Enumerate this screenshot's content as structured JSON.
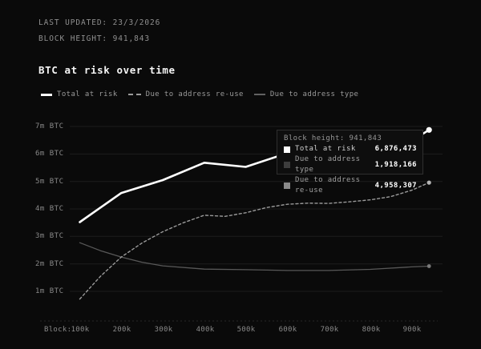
{
  "header": {
    "last_updated": "LAST UPDATED: 23/3/2026",
    "block_height": "BLOCK HEIGHT: 941,843"
  },
  "title": "BTC at risk over time",
  "legend": [
    {
      "label": "Total at risk",
      "marker": "solid-thick",
      "color": "#ffffff"
    },
    {
      "label": "Due to address re-use",
      "marker": "dashed",
      "color": "#9a9a9a"
    },
    {
      "label": "Due to address type",
      "marker": "solid-thin",
      "color": "#616161"
    }
  ],
  "tooltip": {
    "title": "Block height: 941,843",
    "rows": [
      {
        "label": "Total at risk",
        "value": "6,876,473",
        "swatch": "#ffffff"
      },
      {
        "label": "Due to address type",
        "value": "1,918,166",
        "swatch": "#3d3d3d"
      },
      {
        "label": "Due to address re-use",
        "value": "4,958,307",
        "swatch": "#8a8a8a"
      }
    ]
  },
  "chart_data": {
    "type": "line",
    "title": "BTC at risk over time",
    "xlabel_prefix": "Block:",
    "x_ticks": [
      "100k",
      "200k",
      "300k",
      "400k",
      "500k",
      "600k",
      "700k",
      "800k",
      "900k"
    ],
    "y_ticks": [
      "7m BTC",
      "6m BTC",
      "5m BTC",
      "4m BTC",
      "3m BTC",
      "2m BTC",
      "1m BTC"
    ],
    "x_unit": "block height (thousands)",
    "y_unit": "BTC (millions)",
    "ylim": [
      0,
      7.3
    ],
    "grid": "horizontal",
    "legend_position": "top",
    "series": [
      {
        "name": "Total at risk",
        "color": "#ffffff",
        "dash": null,
        "width": 2.6,
        "points": [
          [
            100,
            3.52
          ],
          [
            200,
            4.58
          ],
          [
            300,
            5.05
          ],
          [
            400,
            5.68
          ],
          [
            500,
            5.53
          ],
          [
            600,
            6.03
          ],
          [
            700,
            6.16
          ],
          [
            800,
            6.28
          ],
          [
            900,
            6.48
          ],
          [
            941.843,
            6.876473
          ]
        ]
      },
      {
        "name": "Due to address re-use",
        "color": "#9a9a9a",
        "dash": "3,3",
        "width": 1.4,
        "points": [
          [
            100,
            0.72
          ],
          [
            150,
            1.55
          ],
          [
            200,
            2.25
          ],
          [
            250,
            2.76
          ],
          [
            300,
            3.17
          ],
          [
            350,
            3.5
          ],
          [
            400,
            3.77
          ],
          [
            450,
            3.73
          ],
          [
            500,
            3.86
          ],
          [
            550,
            4.05
          ],
          [
            600,
            4.17
          ],
          [
            650,
            4.21
          ],
          [
            700,
            4.2
          ],
          [
            750,
            4.26
          ],
          [
            800,
            4.33
          ],
          [
            850,
            4.45
          ],
          [
            900,
            4.68
          ],
          [
            941.843,
            4.958307
          ]
        ]
      },
      {
        "name": "Due to address type",
        "color": "#585858",
        "dash": null,
        "width": 1.3,
        "points": [
          [
            100,
            2.77
          ],
          [
            150,
            2.48
          ],
          [
            200,
            2.25
          ],
          [
            250,
            2.06
          ],
          [
            300,
            1.93
          ],
          [
            400,
            1.81
          ],
          [
            500,
            1.79
          ],
          [
            600,
            1.76
          ],
          [
            700,
            1.76
          ],
          [
            800,
            1.8
          ],
          [
            900,
            1.89
          ],
          [
            941.843,
            1.918166
          ]
        ]
      }
    ],
    "end_markers": [
      {
        "series": "Total at risk",
        "color": "#ffffff",
        "r": 3.6
      },
      {
        "series": "Due to address re-use",
        "color": "#b5b5b5",
        "r": 2.6
      },
      {
        "series": "Due to address type",
        "color": "#7a7a7a",
        "r": 2.4
      }
    ]
  },
  "colors": {
    "background": "#0a0a0a",
    "grid": "#1c1c1c",
    "axis": "#282828",
    "text_muted": "#8f8f8f",
    "text_bright": "#f5f5f5"
  }
}
